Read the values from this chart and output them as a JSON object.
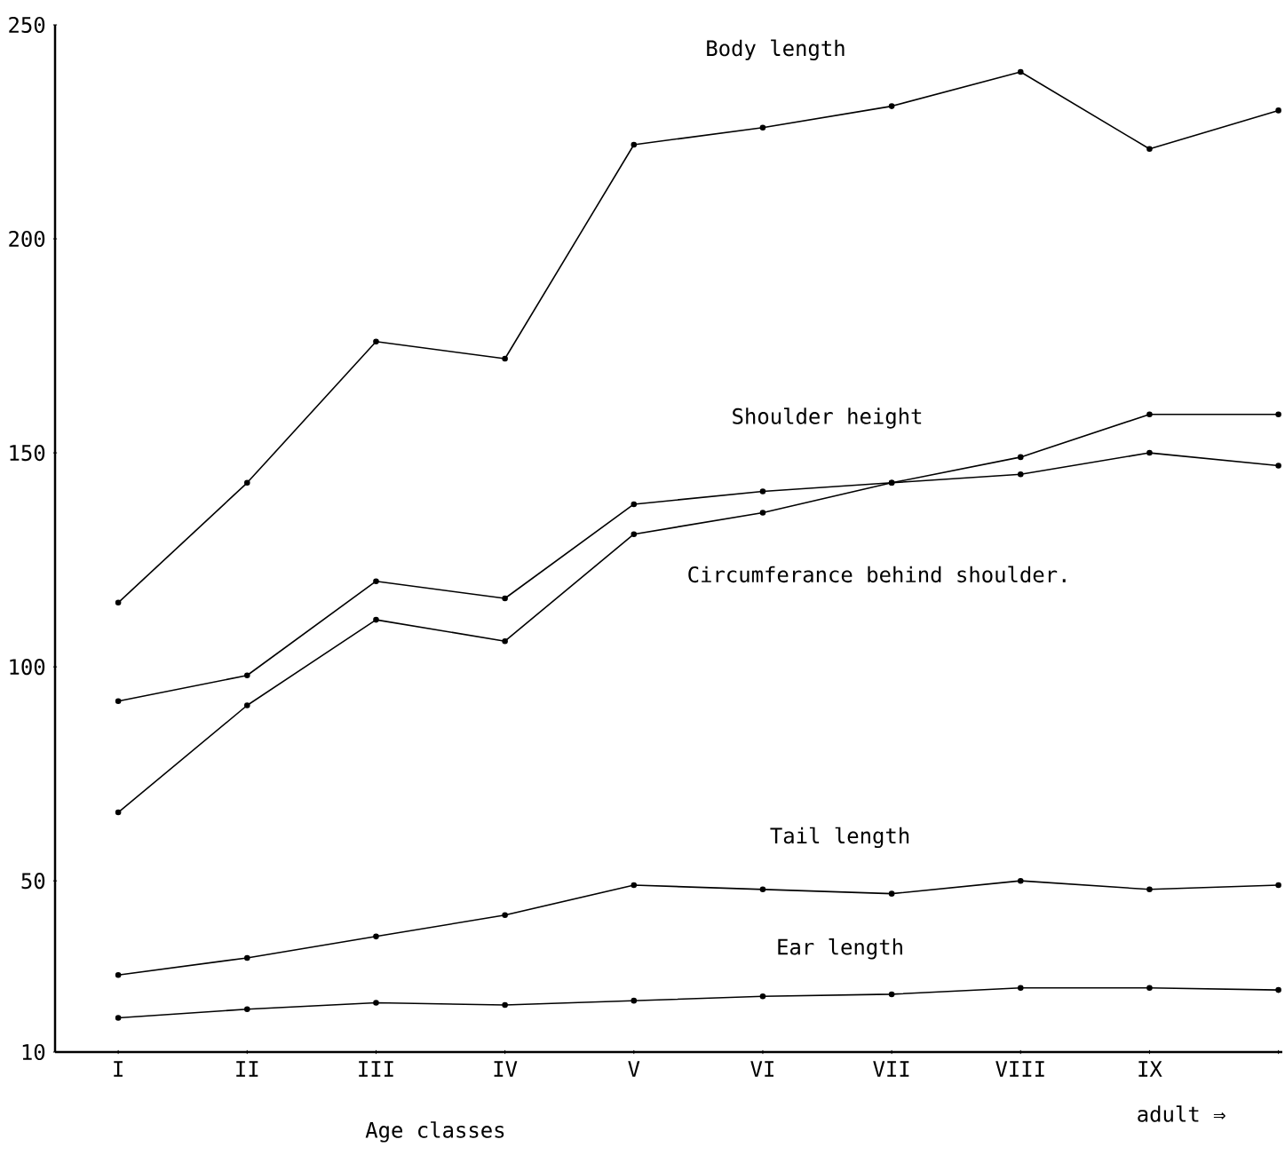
{
  "chart_data": {
    "type": "line",
    "xlabel": "Age classes",
    "annotations": [
      "adult ⇒"
    ],
    "categories": [
      "I",
      "II",
      "III",
      "IV",
      "V",
      "VI",
      "VII",
      "VIII",
      "IX",
      null
    ],
    "series": [
      {
        "name": "Body length",
        "color": "#000000",
        "values": [
          115,
          143,
          176,
          172,
          222,
          226,
          231,
          239,
          221,
          230
        ]
      },
      {
        "name": "Shoulder height",
        "color": "#000000",
        "values": [
          92,
          98,
          120,
          116,
          138,
          141,
          143,
          145,
          150,
          147
        ]
      },
      {
        "name": "Circumferance behind shoulder.",
        "color": "#000000",
        "values": [
          66,
          91,
          111,
          106,
          131,
          136,
          143,
          149,
          159,
          159
        ]
      },
      {
        "name": "Tail length",
        "color": "#000000",
        "values": [
          28,
          32,
          37,
          42,
          49,
          48,
          47,
          50,
          48,
          49
        ]
      },
      {
        "name": "Ear length",
        "color": "#000000",
        "values": [
          18,
          20,
          21.5,
          21,
          22,
          23,
          23.5,
          25,
          25,
          24.5
        ]
      }
    ],
    "ylim": [
      10,
      250
    ],
    "yticks": [
      250,
      200,
      150,
      100,
      50,
      10
    ],
    "grid": false,
    "marker": "circle",
    "line_style": "solid"
  }
}
